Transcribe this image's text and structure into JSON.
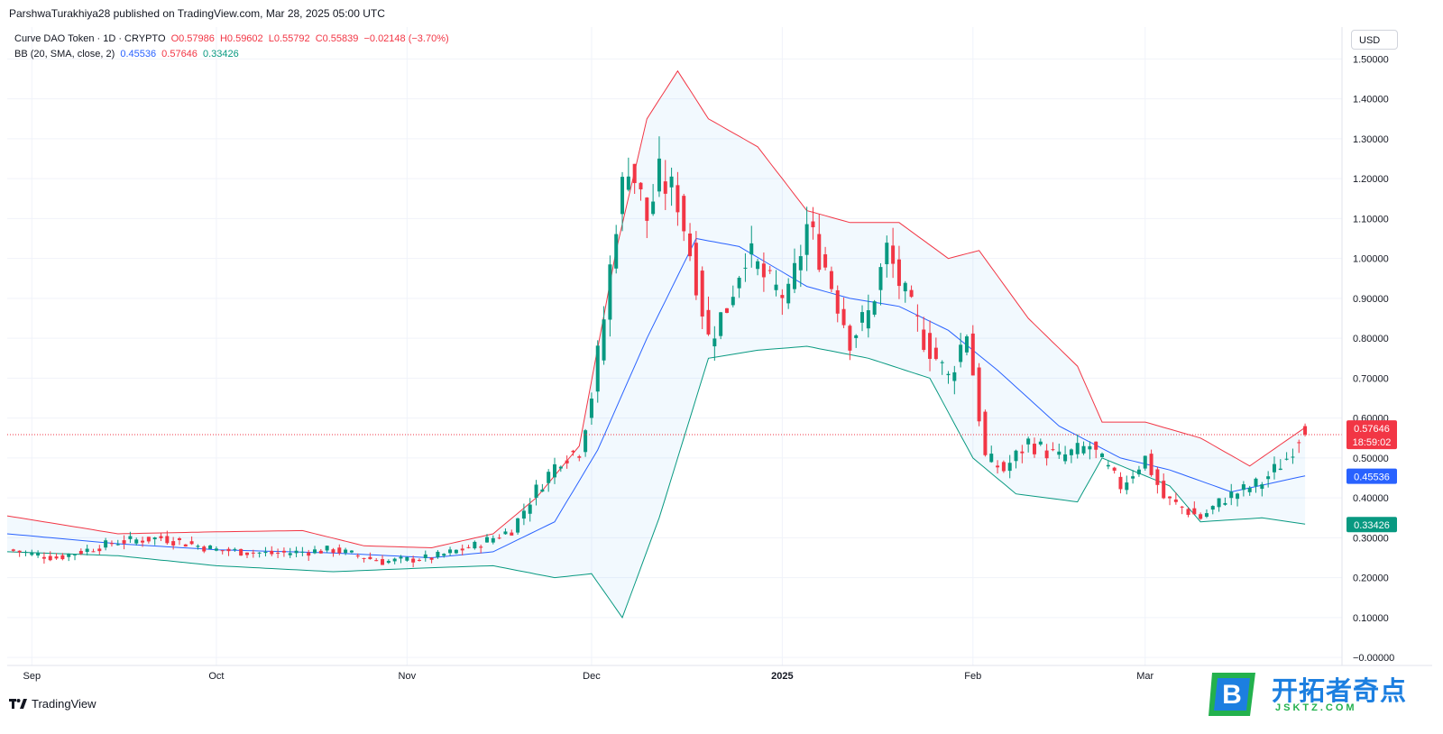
{
  "publisher_line": "ParshwaTurakhiya28 published on TradingView.com, Mar 28, 2025 05:00 UTC",
  "legend": {
    "symbol": "Curve DAO Token · 1D · CRYPTO",
    "open": "O0.57986",
    "high": "H0.59602",
    "low": "L0.55792",
    "close": "C0.55839",
    "change": "−0.02148 (−3.70%)",
    "bb_name": "BB (20, SMA, close, 2)",
    "bb_basis": "0.45536",
    "bb_upper": "0.57646",
    "bb_lower": "0.33426"
  },
  "currency_button": "USD",
  "branding": {
    "tradingview": "TradingView"
  },
  "watermark": {
    "brand_text": "开拓者奇点",
    "domain_text": "JSKTZ.COM",
    "logo_letter": "B"
  },
  "colors": {
    "up": "#089981",
    "down": "#f23645",
    "basis": "#2962ff",
    "upper": "#f23645",
    "lower": "#089981",
    "fill": "#2196f3",
    "grid": "#f0f3fa",
    "text": "#131722"
  },
  "chart_data": {
    "type": "candlestick",
    "title": "Curve DAO Token · 1D · CRYPTO",
    "y_ticks": [
      "1.50000",
      "1.40000",
      "1.30000",
      "1.20000",
      "1.10000",
      "1.00000",
      "0.90000",
      "0.80000",
      "0.70000",
      "0.60000",
      "0.50000",
      "0.40000",
      "0.30000",
      "0.20000",
      "0.10000",
      "−0.00000"
    ],
    "x_ticks": [
      "Sep",
      "Oct",
      "Nov",
      "Dec",
      "2025",
      "Feb",
      "Mar"
    ],
    "ylim": [
      -0.02,
      1.58
    ],
    "xlim": [
      "2024-08-28",
      "2025-04-02"
    ],
    "grid": true,
    "price_labels": {
      "upper": "0.57646",
      "countdown": "18:59:02",
      "basis": "0.45536",
      "lower": "0.33426"
    },
    "current_price": 0.55839,
    "anchors": [
      {
        "date": "2024-08-28",
        "price": 0.27
      },
      {
        "date": "2024-09-05",
        "price": 0.25
      },
      {
        "date": "2024-09-15",
        "price": 0.29
      },
      {
        "date": "2024-09-22",
        "price": 0.3
      },
      {
        "date": "2024-10-01",
        "price": 0.27
      },
      {
        "date": "2024-10-10",
        "price": 0.26
      },
      {
        "date": "2024-10-20",
        "price": 0.27
      },
      {
        "date": "2024-10-28",
        "price": 0.24
      },
      {
        "date": "2024-11-05",
        "price": 0.25
      },
      {
        "date": "2024-11-12",
        "price": 0.28
      },
      {
        "date": "2024-11-18",
        "price": 0.32
      },
      {
        "date": "2024-11-22",
        "price": 0.42
      },
      {
        "date": "2024-11-26",
        "price": 0.5
      },
      {
        "date": "2024-11-29",
        "price": 0.52
      },
      {
        "date": "2024-12-01",
        "price": 0.66
      },
      {
        "date": "2024-12-03",
        "price": 0.85
      },
      {
        "date": "2024-12-05",
        "price": 1.1
      },
      {
        "date": "2024-12-07",
        "price": 1.25
      },
      {
        "date": "2024-12-10",
        "price": 1.1
      },
      {
        "date": "2024-12-12",
        "price": 1.2
      },
      {
        "date": "2024-12-15",
        "price": 1.15
      },
      {
        "date": "2024-12-18",
        "price": 0.95
      },
      {
        "date": "2024-12-20",
        "price": 0.8
      },
      {
        "date": "2024-12-23",
        "price": 0.88
      },
      {
        "date": "2024-12-26",
        "price": 1.02
      },
      {
        "date": "2024-12-30",
        "price": 0.93
      },
      {
        "date": "2025-01-02",
        "price": 0.9
      },
      {
        "date": "2025-01-05",
        "price": 1.08
      },
      {
        "date": "2025-01-08",
        "price": 0.98
      },
      {
        "date": "2025-01-12",
        "price": 0.8
      },
      {
        "date": "2025-01-15",
        "price": 0.86
      },
      {
        "date": "2025-01-18",
        "price": 1.02
      },
      {
        "date": "2025-01-21",
        "price": 0.9
      },
      {
        "date": "2025-01-24",
        "price": 0.8
      },
      {
        "date": "2025-01-28",
        "price": 0.7
      },
      {
        "date": "2025-01-31",
        "price": 0.82
      },
      {
        "date": "2025-02-03",
        "price": 0.5
      },
      {
        "date": "2025-02-06",
        "price": 0.47
      },
      {
        "date": "2025-02-10",
        "price": 0.54
      },
      {
        "date": "2025-02-15",
        "price": 0.5
      },
      {
        "date": "2025-02-20",
        "price": 0.53
      },
      {
        "date": "2025-02-25",
        "price": 0.43
      },
      {
        "date": "2025-03-01",
        "price": 0.5
      },
      {
        "date": "2025-03-04",
        "price": 0.4
      },
      {
        "date": "2025-03-10",
        "price": 0.35
      },
      {
        "date": "2025-03-14",
        "price": 0.4
      },
      {
        "date": "2025-03-20",
        "price": 0.44
      },
      {
        "date": "2025-03-24",
        "price": 0.5
      },
      {
        "date": "2025-03-27",
        "price": 0.58
      }
    ],
    "bb_upper": [
      {
        "date": "2024-08-28",
        "price": 0.355
      },
      {
        "date": "2024-09-15",
        "price": 0.31
      },
      {
        "date": "2024-10-01",
        "price": 0.315
      },
      {
        "date": "2024-10-15",
        "price": 0.318
      },
      {
        "date": "2024-10-25",
        "price": 0.28
      },
      {
        "date": "2024-11-05",
        "price": 0.275
      },
      {
        "date": "2024-11-15",
        "price": 0.31
      },
      {
        "date": "2024-11-22",
        "price": 0.4
      },
      {
        "date": "2024-11-29",
        "price": 0.53
      },
      {
        "date": "2024-12-05",
        "price": 1.02
      },
      {
        "date": "2024-12-10",
        "price": 1.35
      },
      {
        "date": "2024-12-15",
        "price": 1.47
      },
      {
        "date": "2024-12-20",
        "price": 1.35
      },
      {
        "date": "2024-12-28",
        "price": 1.28
      },
      {
        "date": "2025-01-05",
        "price": 1.12
      },
      {
        "date": "2025-01-12",
        "price": 1.09
      },
      {
        "date": "2025-01-20",
        "price": 1.09
      },
      {
        "date": "2025-01-28",
        "price": 1.0
      },
      {
        "date": "2025-02-02",
        "price": 1.02
      },
      {
        "date": "2025-02-10",
        "price": 0.85
      },
      {
        "date": "2025-02-18",
        "price": 0.73
      },
      {
        "date": "2025-02-22",
        "price": 0.59
      },
      {
        "date": "2025-03-01",
        "price": 0.59
      },
      {
        "date": "2025-03-10",
        "price": 0.55
      },
      {
        "date": "2025-03-18",
        "price": 0.48
      },
      {
        "date": "2025-03-27",
        "price": 0.57646
      }
    ],
    "bb_basis": [
      {
        "date": "2024-08-28",
        "price": 0.31
      },
      {
        "date": "2024-09-15",
        "price": 0.285
      },
      {
        "date": "2024-10-01",
        "price": 0.27
      },
      {
        "date": "2024-10-20",
        "price": 0.262
      },
      {
        "date": "2024-11-05",
        "price": 0.25
      },
      {
        "date": "2024-11-15",
        "price": 0.265
      },
      {
        "date": "2024-11-25",
        "price": 0.34
      },
      {
        "date": "2024-12-02",
        "price": 0.52
      },
      {
        "date": "2024-12-10",
        "price": 0.8
      },
      {
        "date": "2024-12-18",
        "price": 1.05
      },
      {
        "date": "2024-12-25",
        "price": 1.03
      },
      {
        "date": "2025-01-05",
        "price": 0.93
      },
      {
        "date": "2025-01-12",
        "price": 0.9
      },
      {
        "date": "2025-01-20",
        "price": 0.88
      },
      {
        "date": "2025-01-28",
        "price": 0.82
      },
      {
        "date": "2025-02-05",
        "price": 0.72
      },
      {
        "date": "2025-02-15",
        "price": 0.58
      },
      {
        "date": "2025-02-25",
        "price": 0.5
      },
      {
        "date": "2025-03-05",
        "price": 0.47
      },
      {
        "date": "2025-03-15",
        "price": 0.415
      },
      {
        "date": "2025-03-27",
        "price": 0.45536
      }
    ],
    "bb_lower": [
      {
        "date": "2024-08-28",
        "price": 0.265
      },
      {
        "date": "2024-09-15",
        "price": 0.255
      },
      {
        "date": "2024-10-01",
        "price": 0.23
      },
      {
        "date": "2024-10-20",
        "price": 0.215
      },
      {
        "date": "2024-11-05",
        "price": 0.225
      },
      {
        "date": "2024-11-15",
        "price": 0.23
      },
      {
        "date": "2024-11-25",
        "price": 0.2
      },
      {
        "date": "2024-12-01",
        "price": 0.21
      },
      {
        "date": "2024-12-06",
        "price": 0.1
      },
      {
        "date": "2024-12-12",
        "price": 0.35
      },
      {
        "date": "2024-12-20",
        "price": 0.75
      },
      {
        "date": "2024-12-28",
        "price": 0.77
      },
      {
        "date": "2025-01-05",
        "price": 0.78
      },
      {
        "date": "2025-01-15",
        "price": 0.75
      },
      {
        "date": "2025-01-25",
        "price": 0.7
      },
      {
        "date": "2025-02-01",
        "price": 0.5
      },
      {
        "date": "2025-02-08",
        "price": 0.41
      },
      {
        "date": "2025-02-18",
        "price": 0.39
      },
      {
        "date": "2025-02-22",
        "price": 0.5
      },
      {
        "date": "2025-03-05",
        "price": 0.43
      },
      {
        "date": "2025-03-10",
        "price": 0.34
      },
      {
        "date": "2025-03-20",
        "price": 0.35
      },
      {
        "date": "2025-03-27",
        "price": 0.33426
      }
    ]
  }
}
